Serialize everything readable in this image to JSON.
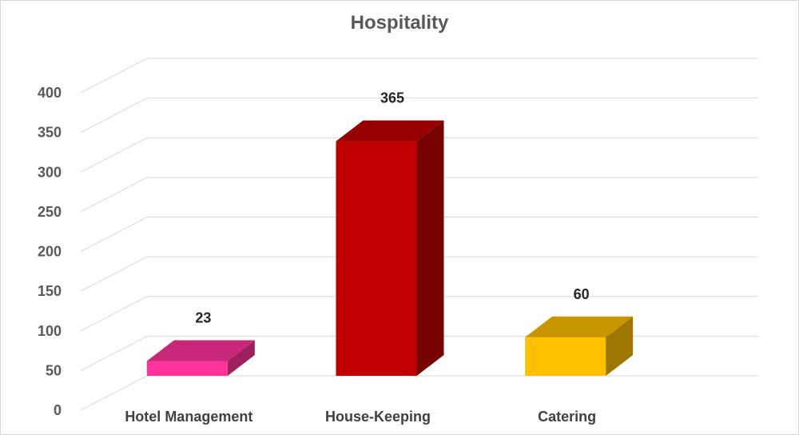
{
  "chart_data": {
    "type": "bar",
    "title": "Hospitality",
    "categories": [
      "Hotel Management",
      "House-Keeping",
      "Catering"
    ],
    "values": [
      23,
      365,
      60
    ],
    "colors": [
      "#ff3399",
      "#c00000",
      "#ffc000"
    ],
    "ylim": [
      0,
      400
    ],
    "yticks": [
      "0",
      "50",
      "100",
      "150",
      "200",
      "250",
      "300",
      "350",
      "400"
    ],
    "data_labels": [
      "23",
      "365",
      "60"
    ],
    "grid": true,
    "legend": "none",
    "style": "3d-column"
  }
}
